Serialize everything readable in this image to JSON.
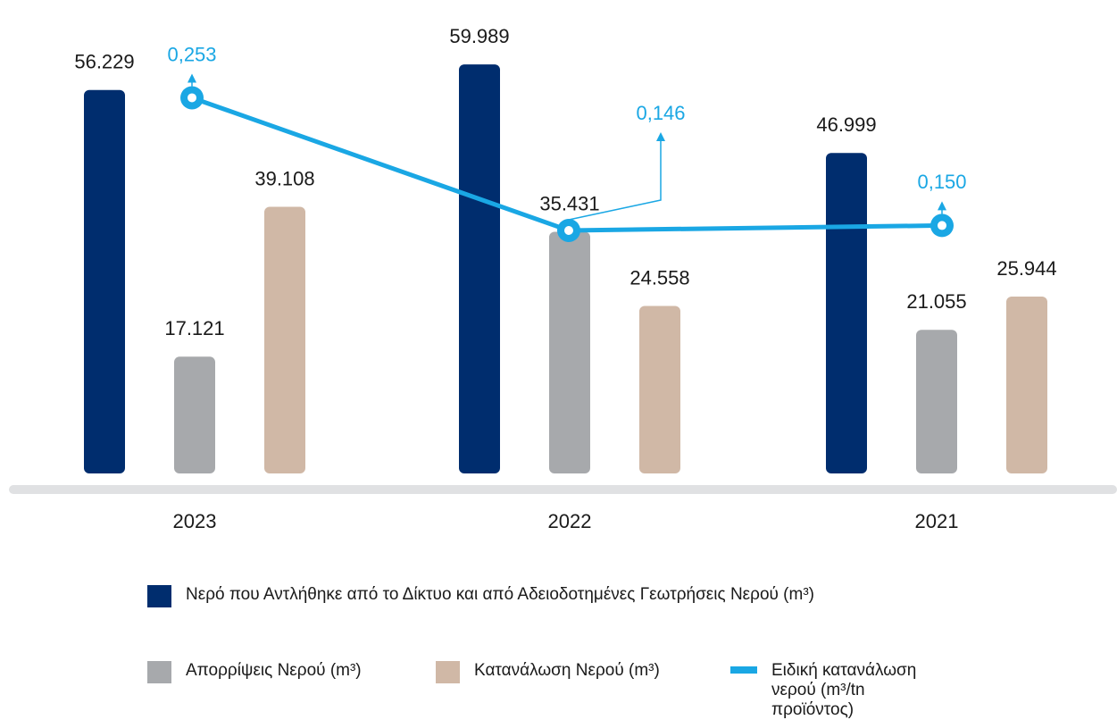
{
  "chart_data": {
    "type": "bar",
    "categories": [
      "2023",
      "2022",
      "2021"
    ],
    "series": [
      {
        "name": "Νερό που Αντλήθηκε από το Δίκτυο και από Αδειοδοτημένες Γεωτρήσεις Νερού (m³)",
        "color": "#002d6e",
        "values": [
          56229,
          59989,
          46999
        ],
        "value_labels": [
          "56.229",
          "59.989",
          "46.999"
        ]
      },
      {
        "name": "Απορρίψεις Νερού (m³)",
        "color": "#a7a9ac",
        "values": [
          17121,
          35431,
          21055
        ],
        "value_labels": [
          "17.121",
          "35.431",
          "21.055"
        ]
      },
      {
        "name": "Κατανάλωση Νερού (m³)",
        "color": "#d0b8a6",
        "values": [
          39108,
          24558,
          25944
        ],
        "value_labels": [
          "39.108",
          "24.558",
          "25.944"
        ]
      },
      {
        "name": "Ειδική κατανάλωση νερού (m³/tn προϊόντος)",
        "type": "line",
        "axis": "y2",
        "color": "#1aa7e4",
        "values": [
          0.253,
          0.146,
          0.15
        ],
        "value_labels": [
          "0,253",
          "0,146",
          "0,150"
        ]
      }
    ],
    "ylim": [
      0,
      60000
    ],
    "y2lim": [
      -0.05,
      0.28
    ],
    "grid": false
  }
}
